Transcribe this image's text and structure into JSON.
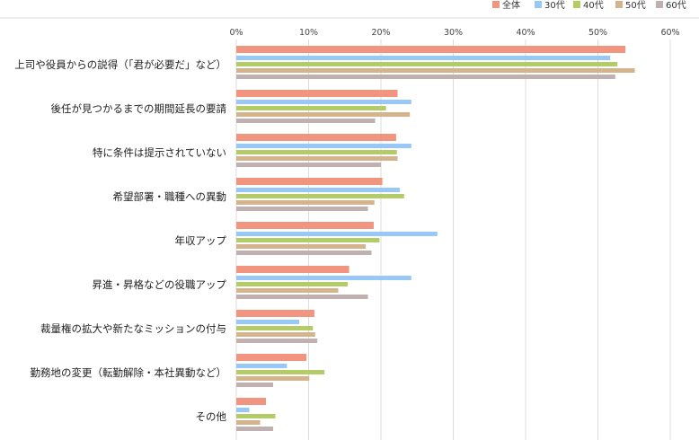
{
  "chart_data": {
    "type": "bar",
    "orientation": "horizontal",
    "title": "",
    "xlabel": "",
    "ylabel": "",
    "xlim": [
      0,
      60
    ],
    "x_ticks": [
      "0%",
      "10%",
      "20%",
      "30%",
      "40%",
      "50%",
      "60%"
    ],
    "grid": true,
    "legend_position": "top-right",
    "categories": [
      "上司や役員からの説得（「君が必要だ」など）",
      "後任が見つかるまでの期間延長の要請",
      "特に条件は提示されていない",
      "希望部署・職種への異動",
      "年収アップ",
      "昇進・昇格などの役職アップ",
      "裁量権の拡大や新たなミッションの付与",
      "勤務地の変更（転勤解除・本社異動など）",
      "その他"
    ],
    "series": [
      {
        "name": "全体",
        "color": "#f29580",
        "values": [
          53.8,
          22.3,
          22.1,
          20.2,
          19.0,
          15.6,
          10.8,
          9.7,
          4.1
        ]
      },
      {
        "name": "30代",
        "color": "#98c8f8",
        "values": [
          51.7,
          24.2,
          24.2,
          22.6,
          27.8,
          24.2,
          8.7,
          7.0,
          1.8
        ]
      },
      {
        "name": "40代",
        "color": "#b4cc68",
        "values": [
          52.7,
          20.7,
          22.2,
          23.2,
          19.8,
          15.4,
          10.6,
          12.2,
          5.4
        ]
      },
      {
        "name": "50代",
        "color": "#d4b48c",
        "values": [
          55.1,
          24.0,
          22.3,
          19.1,
          17.9,
          14.1,
          10.9,
          10.1,
          3.3
        ]
      },
      {
        "name": "60代",
        "color": "#c0b0b0",
        "values": [
          52.4,
          19.2,
          20.0,
          18.2,
          18.7,
          18.2,
          11.2,
          5.1,
          5.1
        ]
      }
    ]
  }
}
